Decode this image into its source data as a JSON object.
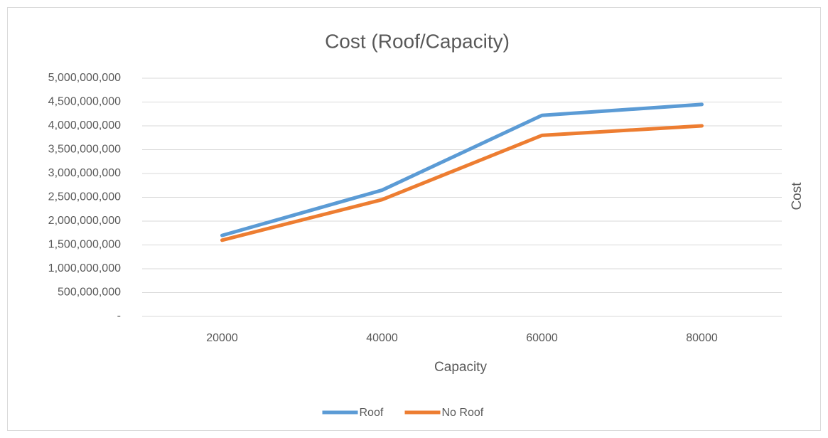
{
  "chart_data": {
    "type": "line",
    "title": "Cost (Roof/Capacity)",
    "x_label": "Capacity",
    "y_label": "Cost",
    "categories": [
      "20000",
      "40000",
      "60000",
      "80000"
    ],
    "series": [
      {
        "name": "Roof",
        "color": "#5b9bd5",
        "values": [
          1700000000,
          2650000000,
          4220000000,
          4450000000
        ]
      },
      {
        "name": "No Roof",
        "color": "#ed7d31",
        "values": [
          1600000000,
          2450000000,
          3800000000,
          4000000000
        ]
      }
    ],
    "ylim": [
      0,
      5000000000
    ],
    "yticks": [
      {
        "value": 0,
        "label": "-"
      },
      {
        "value": 500000000,
        "label": "500,000,000"
      },
      {
        "value": 1000000000,
        "label": "1,000,000,000"
      },
      {
        "value": 1500000000,
        "label": "1,500,000,000"
      },
      {
        "value": 2000000000,
        "label": "2,000,000,000"
      },
      {
        "value": 2500000000,
        "label": "2,500,000,000"
      },
      {
        "value": 3000000000,
        "label": "3,000,000,000"
      },
      {
        "value": 3500000000,
        "label": "3,500,000,000"
      },
      {
        "value": 4000000000,
        "label": "4,000,000,000"
      },
      {
        "value": 4500000000,
        "label": "4,500,000,000"
      },
      {
        "value": 5000000000,
        "label": "5,000,000,000"
      }
    ],
    "grid": true,
    "legend": "bottom"
  }
}
